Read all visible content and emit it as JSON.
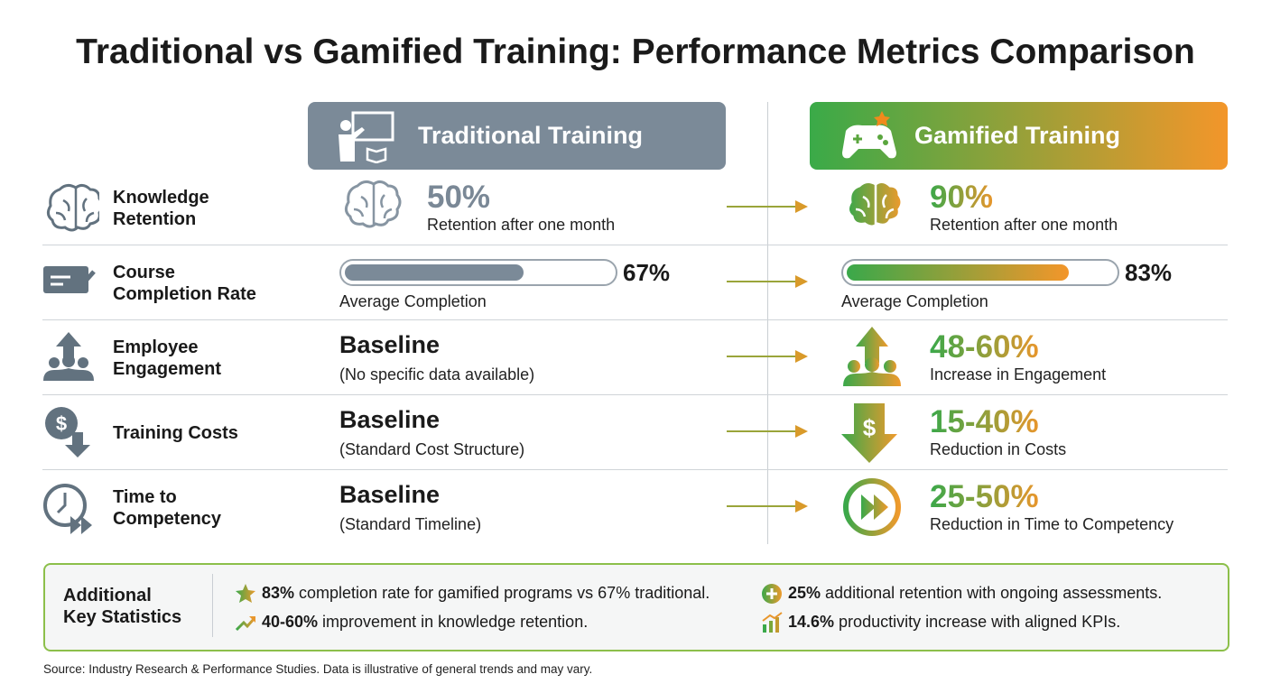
{
  "title": "Traditional vs Gamified Training: Performance Metrics Comparison",
  "columns": {
    "traditional": "Traditional Training",
    "gamified": "Gamified Training"
  },
  "rows": [
    {
      "metric": [
        "Knowledge",
        "Retention"
      ],
      "traditional": {
        "headline": "50%",
        "caption": "Retention after one month"
      },
      "gamified": {
        "headline": "90%",
        "caption": "Retention after one month"
      }
    },
    {
      "metric": [
        "Course",
        "Completion Rate"
      ],
      "traditional": {
        "bar": {
          "value": 67,
          "label": "67%"
        },
        "caption": "Average Completion"
      },
      "gamified": {
        "bar": {
          "value": 83,
          "label": "83%"
        },
        "caption": "Average Completion"
      }
    },
    {
      "metric": [
        "Employee",
        "Engagement"
      ],
      "traditional": {
        "headline": "Baseline",
        "caption": "(No specific data available)"
      },
      "gamified": {
        "headline": "48-60%",
        "caption": "Increase in Engagement"
      }
    },
    {
      "metric": [
        "Training Costs"
      ],
      "traditional": {
        "headline": "Baseline",
        "caption": "(Standard Cost Structure)"
      },
      "gamified": {
        "headline": "15-40%",
        "caption": "Reduction in Costs"
      }
    },
    {
      "metric": [
        "Time to",
        "Competency"
      ],
      "traditional": {
        "headline": "Baseline",
        "caption": "(Standard Timeline)"
      },
      "gamified": {
        "headline": "25-50%",
        "caption": "Reduction in Time to Competency"
      }
    }
  ],
  "key_stats": {
    "title": [
      "Additional",
      "Key Statistics"
    ],
    "items": [
      {
        "highlight": "83%",
        "text": "completion rate for gamified programs vs 67% traditional."
      },
      {
        "highlight": "25%",
        "text": "additional retention with ongoing assessments."
      },
      {
        "highlight": "40-60%",
        "text": "improvement in knowledge retention."
      },
      {
        "highlight": "14.6%",
        "text": "productivity increase with aligned KPIs."
      }
    ]
  },
  "source": "Source: Industry Research & Performance Studies. Data is illustrative of general trends and may vary."
}
